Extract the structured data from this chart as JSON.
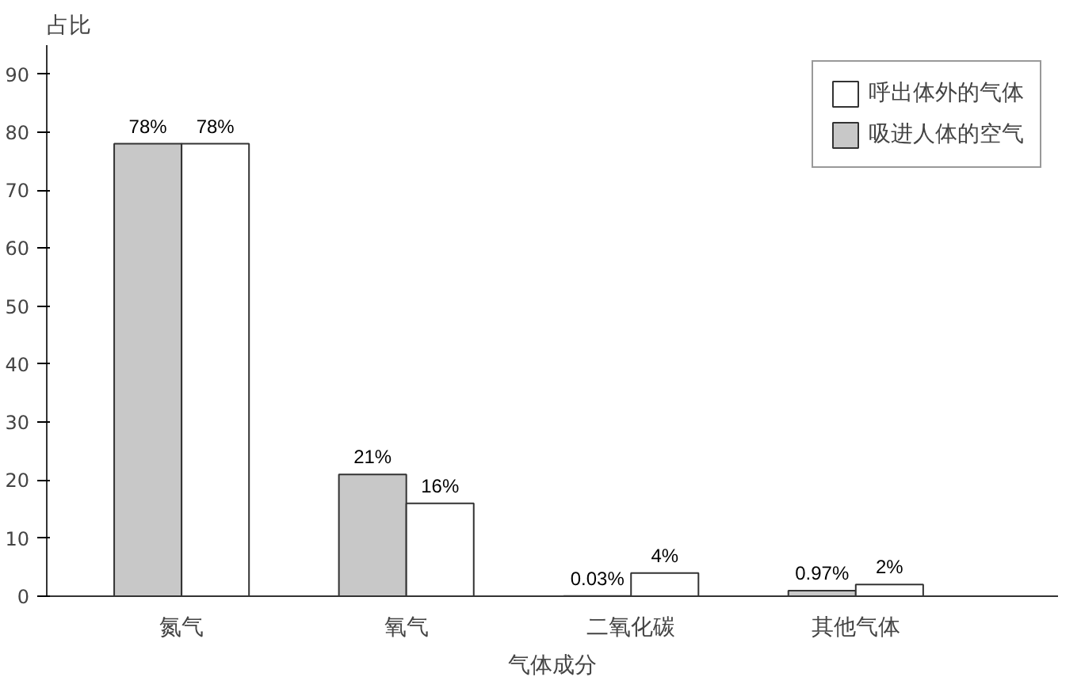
{
  "chart_data": {
    "type": "bar",
    "ylabel": "占比",
    "xlabel": "气体成分",
    "categories": [
      "氮气",
      "氧气",
      "二氧化碳",
      "其他气体"
    ],
    "series": [
      {
        "name": "吸进人体的空气",
        "color": "#c8c8c8",
        "values": [
          78,
          21,
          0.03,
          0.97
        ],
        "value_labels": [
          "78%",
          "21%",
          "0.03%",
          "0.97%"
        ]
      },
      {
        "name": "呼出体外的气体",
        "color": "#ffffff",
        "values": [
          78,
          16,
          4,
          2
        ],
        "value_labels": [
          "78%",
          "16%",
          "4%",
          "2%"
        ]
      }
    ],
    "ylim": [
      0,
      95
    ],
    "yticks": [
      0,
      10,
      20,
      30,
      40,
      50,
      60,
      70,
      80,
      90
    ],
    "grid": false,
    "legend": "top right"
  }
}
